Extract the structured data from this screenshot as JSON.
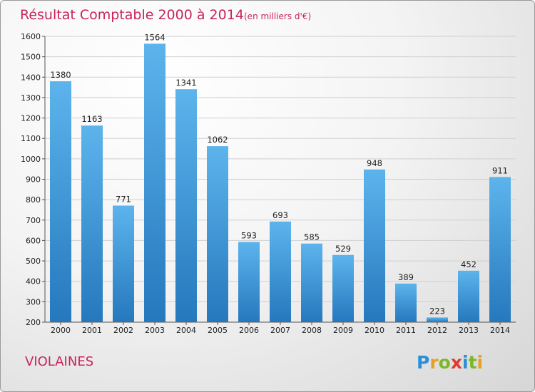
{
  "header": {
    "title": "Résultat Comptable 2000 à 2014",
    "subtitle": "(en milliers d'€)"
  },
  "footer": {
    "place": "VIOLAINES",
    "logo": {
      "letters": [
        "P",
        "r",
        "o",
        "x",
        "i",
        "t",
        "i"
      ],
      "colors": [
        "#2b8ed8",
        "#e8a020",
        "#7cb72b",
        "#e03a2f",
        "#2b8ed8",
        "#7cb72b",
        "#e8a020"
      ]
    }
  },
  "colors": {
    "bar_light": "#5db4ec",
    "bar_dark": "#2578bd",
    "grid": "#cfcfcf",
    "axis": "#555555"
  },
  "chart_data": {
    "type": "bar",
    "title": "Résultat Comptable 2000 à 2014",
    "subtitle": "(en milliers d'€)",
    "categories": [
      "2000",
      "2001",
      "2002",
      "2003",
      "2004",
      "2005",
      "2006",
      "2007",
      "2008",
      "2009",
      "2010",
      "2011",
      "2012",
      "2013",
      "2014"
    ],
    "values": [
      1380,
      1163,
      771,
      1564,
      1341,
      1062,
      593,
      693,
      585,
      529,
      948,
      389,
      223,
      452,
      911
    ],
    "ylim": [
      200,
      1600
    ],
    "yticks": [
      200,
      300,
      400,
      500,
      600,
      700,
      800,
      900,
      1000,
      1100,
      1200,
      1300,
      1400,
      1500,
      1600
    ],
    "grid": true
  }
}
